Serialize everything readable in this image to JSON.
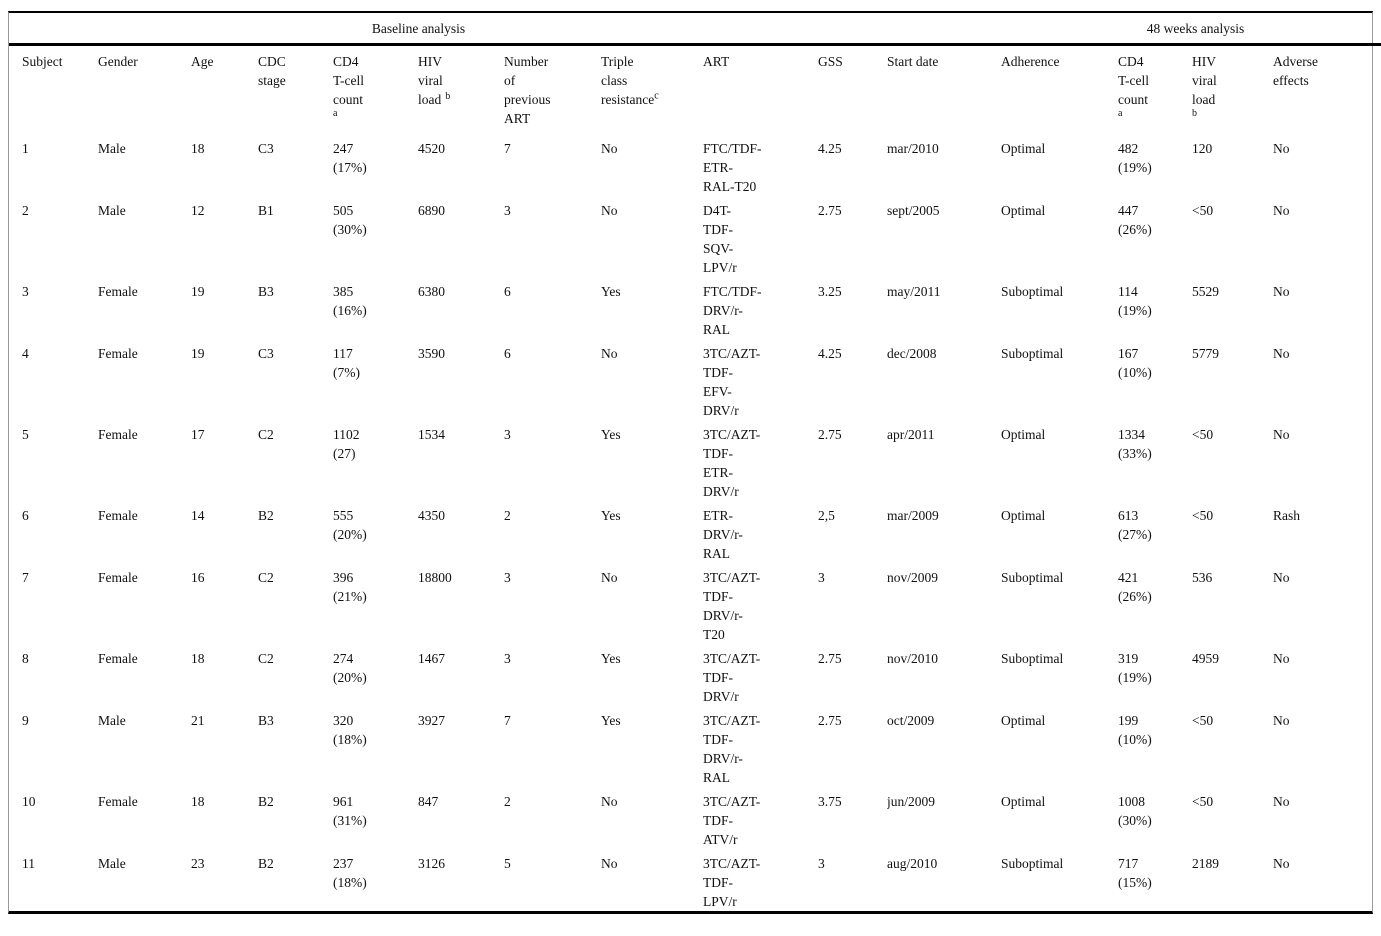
{
  "table": {
    "group_headers": {
      "baseline": "Baseline analysis",
      "week48": "48 weeks analysis"
    },
    "columns": [
      {
        "text": "Subject"
      },
      {
        "text": "Gender"
      },
      {
        "text": "Age"
      },
      {
        "text": "CDC\nstage"
      },
      {
        "text": "CD4\nT-cell\ncount",
        "sup": "a"
      },
      {
        "text": "HIV\nviral\nload",
        "sup": "b"
      },
      {
        "text": "Number\nof\nprevious\nART"
      },
      {
        "text": "Triple\nclass\nresistance",
        "sup": "c"
      },
      {
        "text": "ART"
      },
      {
        "text": "GSS"
      },
      {
        "text": "Start date"
      },
      {
        "text": "Adherence"
      },
      {
        "text": "CD4\nT-cell\ncount",
        "sup": "a"
      },
      {
        "text": "HIV\nviral\nload",
        "sup": "b"
      },
      {
        "text": "Adverse\neffects"
      }
    ],
    "rows": [
      [
        "1",
        "Male",
        "18",
        "C3",
        "247\n(17%)",
        "4520",
        "7",
        "No",
        "FTC/TDF-\nETR-\nRAL-T20",
        "4.25",
        "mar/2010",
        "Optimal",
        "482\n(19%)",
        "120",
        "No"
      ],
      [
        "2",
        "Male",
        "12",
        "B1",
        "505\n(30%)",
        "6890",
        "3",
        "No",
        "D4T-\nTDF-\nSQV-\nLPV/r",
        "2.75",
        "sept/2005",
        "Optimal",
        "447\n(26%)",
        "<50",
        "No"
      ],
      [
        "3",
        "Female",
        "19",
        "B3",
        "385\n(16%)",
        "6380",
        "6",
        "Yes",
        "FTC/TDF-\nDRV/r-\nRAL",
        "3.25",
        "may/2011",
        "Suboptimal",
        "114\n(19%)",
        "5529",
        "No"
      ],
      [
        "4",
        "Female",
        "19",
        "C3",
        "117\n(7%)",
        "3590",
        "6",
        "No",
        "3TC/AZT-\nTDF-\nEFV-\nDRV/r",
        "4.25",
        "dec/2008",
        "Suboptimal",
        "167\n(10%)",
        "5779",
        "No"
      ],
      [
        "5",
        "Female",
        "17",
        "C2",
        "1102\n(27)",
        "1534",
        "3",
        "Yes",
        "3TC/AZT-\nTDF-\nETR-\nDRV/r",
        "2.75",
        "apr/2011",
        "Optimal",
        "1334\n(33%)",
        "<50",
        "No"
      ],
      [
        "6",
        "Female",
        "14",
        "B2",
        "555\n(20%)",
        "4350",
        "2",
        "Yes",
        "ETR-\nDRV/r-\nRAL",
        "2,5",
        "mar/2009",
        "Optimal",
        "613\n(27%)",
        "<50",
        "Rash"
      ],
      [
        "7",
        "Female",
        "16",
        "C2",
        "396\n(21%)",
        "18800",
        "3",
        "No",
        "3TC/AZT-\nTDF-\nDRV/r-\nT20",
        "3",
        "nov/2009",
        "Suboptimal",
        "421\n(26%)",
        "536",
        "No"
      ],
      [
        "8",
        "Female",
        "18",
        "C2",
        "274\n(20%)",
        "1467",
        "3",
        "Yes",
        "3TC/AZT-\nTDF-\nDRV/r",
        "2.75",
        "nov/2010",
        "Suboptimal",
        "319\n(19%)",
        "4959",
        "No"
      ],
      [
        "9",
        "Male",
        "21",
        "B3",
        "320\n(18%)",
        "3927",
        "7",
        "Yes",
        "3TC/AZT-\nTDF-\nDRV/r-\nRAL",
        "2.75",
        "oct/2009",
        "Optimal",
        "199\n(10%)",
        "<50",
        "No"
      ],
      [
        "10",
        "Female",
        "18",
        "B2",
        "961\n(31%)",
        "847",
        "2",
        "No",
        "3TC/AZT-\nTDF-\nATV/r",
        "3.75",
        "jun/2009",
        "Optimal",
        "1008\n(30%)",
        "<50",
        "No"
      ],
      [
        "11",
        "Male",
        "23",
        "B2",
        "237\n(18%)",
        "3126",
        "5",
        "No",
        "3TC/AZT-\nTDF-\nLPV/r",
        "3",
        "aug/2010",
        "Suboptimal",
        "717\n(15%)",
        "2189",
        "No"
      ]
    ]
  }
}
